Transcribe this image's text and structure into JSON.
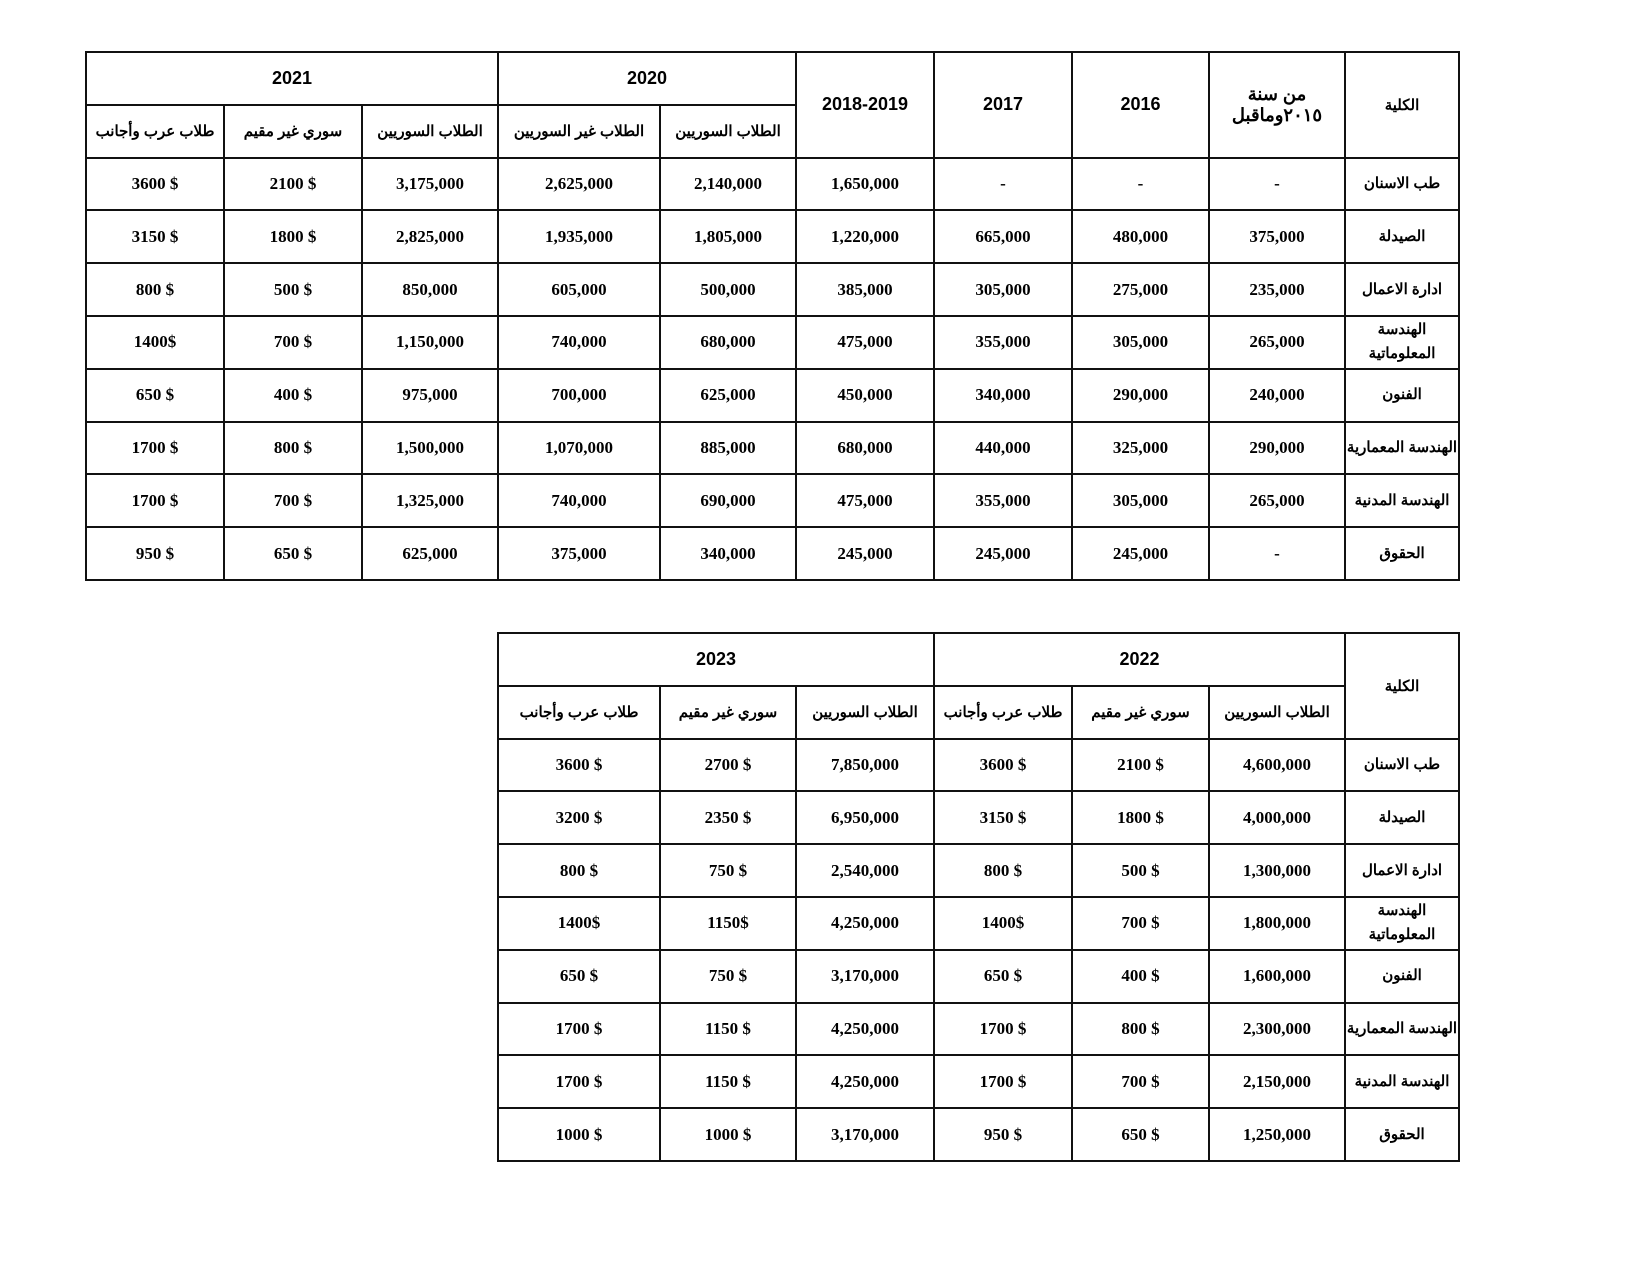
{
  "table1": {
    "faculty_header": "الكلية",
    "single_year_headers": [
      "من سنة ٢٠١٥وماقبل",
      "2016",
      "2017",
      "2018-2019"
    ],
    "group_headers": [
      {
        "year": "2020",
        "subheaders": [
          "الطلاب السوريين",
          "الطلاب غير السوريين"
        ]
      },
      {
        "year": "2021",
        "subheaders": [
          "الطلاب السوريين",
          "سوري غير مقيم",
          "طلاب عرب وأجانب"
        ]
      }
    ],
    "rows": [
      {
        "faculty": "طب الاسنان",
        "values": [
          "-",
          "-",
          "-",
          "1,650,000",
          "2,140,000",
          "2,625,000",
          "3,175,000",
          "2100 $",
          "3600 $"
        ]
      },
      {
        "faculty": "الصيدلة",
        "values": [
          "375,000",
          "480,000",
          "665,000",
          "1,220,000",
          "1,805,000",
          "1,935,000",
          "2,825,000",
          "1800 $",
          "3150 $"
        ]
      },
      {
        "faculty": "ادارة الاعمال",
        "values": [
          "235,000",
          "275,000",
          "305,000",
          "385,000",
          "500,000",
          "605,000",
          "850,000",
          "500 $",
          "800 $"
        ]
      },
      {
        "faculty": "الهندسة المعلوماتية",
        "values": [
          "265,000",
          "305,000",
          "355,000",
          "475,000",
          "680,000",
          "740,000",
          "1,150,000",
          "700 $",
          "1400$"
        ]
      },
      {
        "faculty": "الفنون",
        "values": [
          "240,000",
          "290,000",
          "340,000",
          "450,000",
          "625,000",
          "700,000",
          "975,000",
          "400 $",
          "650 $"
        ]
      },
      {
        "faculty": "الهندسة المعمارية",
        "values": [
          "290,000",
          "325,000",
          "440,000",
          "680,000",
          "885,000",
          "1,070,000",
          "1,500,000",
          "800 $",
          "1700 $"
        ]
      },
      {
        "faculty": "الهندسة المدنية",
        "values": [
          "265,000",
          "305,000",
          "355,000",
          "475,000",
          "690,000",
          "740,000",
          "1,325,000",
          "700 $",
          "1700 $"
        ]
      },
      {
        "faculty": "الحقوق",
        "values": [
          "-",
          "245,000",
          "245,000",
          "245,000",
          "340,000",
          "375,000",
          "625,000",
          "650 $",
          "950 $"
        ]
      }
    ]
  },
  "table2": {
    "faculty_header": "الكلية",
    "single_year_headers": [],
    "group_headers": [
      {
        "year": "2022",
        "subheaders": [
          "الطلاب السوريين",
          "سوري غير مقيم",
          "طلاب عرب وأجانب"
        ]
      },
      {
        "year": "2023",
        "subheaders": [
          "الطلاب السوريين",
          "سوري غير مقيم",
          "طلاب عرب وأجانب"
        ]
      }
    ],
    "rows": [
      {
        "faculty": "طب الاسنان",
        "values": [
          "4,600,000",
          "2100 $",
          "3600 $",
          "7,850,000",
          "2700 $",
          "3600 $"
        ]
      },
      {
        "faculty": "الصيدلة",
        "values": [
          "4,000,000",
          "1800 $",
          "3150 $",
          "6,950,000",
          "2350 $",
          "3200 $"
        ]
      },
      {
        "faculty": "ادارة الاعمال",
        "values": [
          "1,300,000",
          "500 $",
          "800 $",
          "2,540,000",
          "750 $",
          "800 $"
        ]
      },
      {
        "faculty": "الهندسة المعلوماتية",
        "values": [
          "1,800,000",
          "700 $",
          "1400$",
          "4,250,000",
          "1150$",
          "1400$"
        ]
      },
      {
        "faculty": "الفنون",
        "values": [
          "1,600,000",
          "400 $",
          "650 $",
          "3,170,000",
          "750 $",
          "650 $"
        ]
      },
      {
        "faculty": "الهندسة المعمارية",
        "values": [
          "2,300,000",
          "800 $",
          "1700 $",
          "4,250,000",
          "1150 $",
          "1700 $"
        ]
      },
      {
        "faculty": "الهندسة المدنية",
        "values": [
          "2,150,000",
          "700 $",
          "1700 $",
          "4,250,000",
          "1150 $",
          "1700 $"
        ]
      },
      {
        "faculty": "الحقوق",
        "values": [
          "1,250,000",
          "650 $",
          "950 $",
          "3,170,000",
          "1000 $",
          "1000 $"
        ]
      }
    ]
  }
}
